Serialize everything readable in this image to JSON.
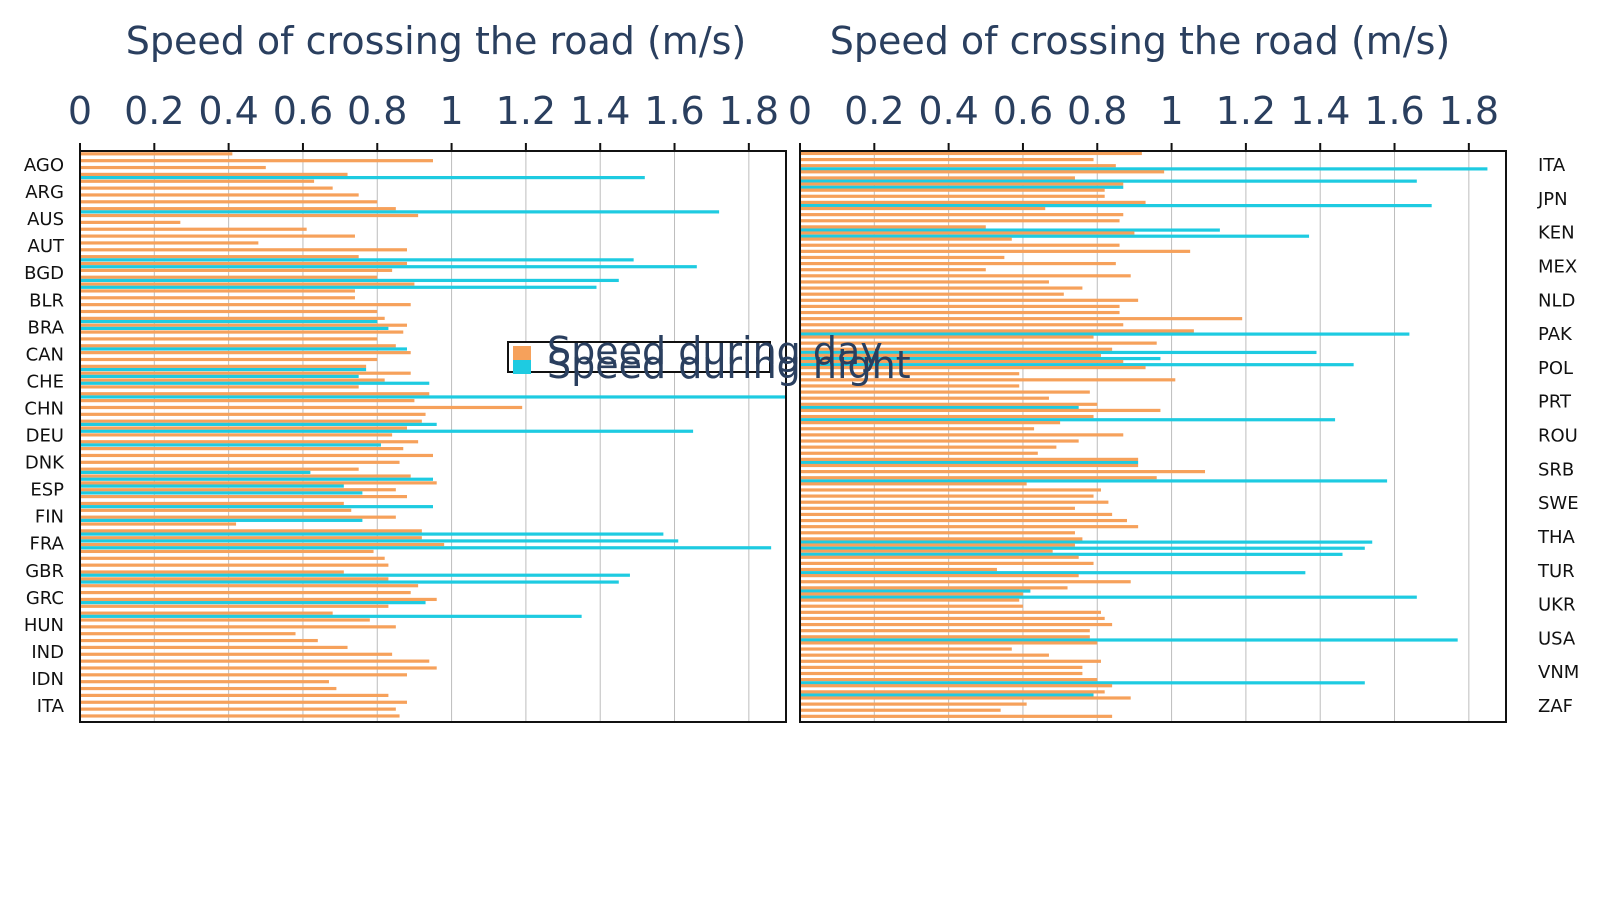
{
  "colors": {
    "day": "#f6a15b",
    "night": "#1ecbe1",
    "grid": "#bdbdbd",
    "frame": "#111111",
    "text": "#2a3f5f"
  },
  "chart_data": [
    {
      "type": "bar",
      "orientation": "horizontal",
      "xlabel": "Speed of crossing the road (m/s)",
      "xlim": [
        0,
        1.9
      ],
      "xticks": [
        "0",
        "0.2",
        "0.4",
        "0.6",
        "0.8",
        "1",
        "1.2",
        "1.4",
        "1.6",
        "1.8"
      ],
      "grid": true,
      "category_labels": [
        "AGO",
        "ARG",
        "AUS",
        "AUT",
        "BGD",
        "BLR",
        "BRA",
        "CAN",
        "CHE",
        "CHN",
        "DEU",
        "DNK",
        "ESP",
        "FIN",
        "FRA",
        "GBR",
        "GRC",
        "HUN",
        "IND",
        "IDN",
        "ITA"
      ],
      "series": [
        {
          "name": "Speed during day",
          "values": [
            0.41,
            0.95,
            0.5,
            0.72,
            0.63,
            0.68,
            0.75,
            0.8,
            0.85,
            0.91,
            0.27,
            0.61,
            0.74,
            0.48,
            0.88,
            0.75,
            0.88,
            0.84,
            0.8,
            0.9,
            0.74,
            0.74,
            0.89,
            0.8,
            0.82,
            0.88,
            0.87,
            0.8,
            0.85,
            0.89,
            0.8,
            0.77,
            0.89,
            0.82,
            0.75,
            0.94,
            0.9,
            1.19,
            0.93,
            0.92,
            0.88,
            0.84,
            0.91,
            0.87,
            0.95,
            0.86,
            0.75,
            0.89,
            0.96,
            0.85,
            0.88,
            0.71,
            0.73,
            0.85,
            0.42,
            0.92,
            0.92,
            0.98,
            0.79,
            0.82,
            0.83,
            0.71,
            0.83,
            0.91,
            0.89,
            0.96,
            0.83,
            0.68,
            0.78,
            0.85,
            0.58,
            0.64,
            0.72,
            0.84,
            0.94,
            0.96,
            0.88,
            0.67,
            0.69,
            0.83,
            0.88,
            0.85,
            0.86
          ]
        },
        {
          "name": "Speed during night",
          "values": [
            null,
            null,
            null,
            1.52,
            null,
            null,
            null,
            null,
            1.72,
            null,
            null,
            null,
            null,
            null,
            null,
            1.49,
            1.66,
            null,
            1.45,
            1.39,
            null,
            null,
            null,
            null,
            0.8,
            0.83,
            null,
            null,
            0.88,
            null,
            null,
            0.77,
            0.75,
            0.94,
            null,
            1.9,
            null,
            null,
            null,
            0.96,
            1.65,
            null,
            0.81,
            null,
            null,
            null,
            0.62,
            0.95,
            0.71,
            0.76,
            null,
            0.95,
            null,
            0.76,
            null,
            1.57,
            1.61,
            1.86,
            null,
            null,
            null,
            1.48,
            1.45,
            null,
            null,
            0.93,
            null,
            1.35,
            null,
            null,
            null,
            null,
            null,
            null,
            null,
            null,
            null,
            null,
            null,
            null,
            null,
            null,
            null
          ]
        }
      ]
    },
    {
      "type": "bar",
      "orientation": "horizontal",
      "xlabel": "Speed of crossing the road (m/s)",
      "xlim": [
        0,
        1.9
      ],
      "xticks": [
        "0",
        "0.2",
        "0.4",
        "0.6",
        "0.8",
        "1",
        "1.2",
        "1.4",
        "1.6",
        "1.8"
      ],
      "grid": true,
      "category_labels": [
        "ITA",
        "JPN",
        "KEN",
        "MEX",
        "NLD",
        "PAK",
        "POL",
        "PRT",
        "ROU",
        "SRB",
        "SWE",
        "THA",
        "TUR",
        "UKR",
        "USA",
        "VNM",
        "ZAF"
      ],
      "series": [
        {
          "name": "Speed during day",
          "values": [
            0.92,
            0.79,
            0.85,
            0.98,
            0.74,
            0.87,
            0.82,
            0.82,
            0.93,
            0.66,
            0.87,
            0.86,
            0.5,
            0.9,
            0.57,
            0.86,
            1.05,
            0.55,
            0.85,
            0.5,
            0.89,
            0.67,
            0.76,
            0.71,
            0.91,
            0.86,
            0.86,
            1.19,
            0.87,
            1.06,
            0.79,
            0.96,
            0.84,
            0.81,
            0.87,
            0.93,
            0.59,
            1.01,
            0.59,
            0.78,
            0.67,
            0.8,
            0.97,
            0.79,
            0.7,
            0.63,
            0.87,
            0.75,
            0.69,
            0.64,
            0.91,
            0.91,
            1.09,
            0.96,
            0.61,
            0.81,
            0.79,
            0.83,
            0.74,
            0.84,
            0.88,
            0.91,
            0.74,
            0.76,
            0.74,
            0.68,
            0.75,
            0.79,
            0.53,
            0.75,
            0.89,
            0.72,
            0.6,
            0.59,
            0.6,
            0.81,
            0.82,
            0.84,
            0.78,
            0.78,
            0.8,
            0.57,
            0.67,
            0.81,
            0.76,
            0.76,
            0.8,
            0.84,
            0.82,
            0.89,
            0.61,
            0.54,
            0.84
          ]
        },
        {
          "name": "Speed during night",
          "values": [
            null,
            null,
            1.85,
            null,
            1.66,
            0.87,
            null,
            null,
            1.7,
            null,
            null,
            null,
            1.13,
            1.37,
            null,
            null,
            null,
            null,
            null,
            null,
            null,
            null,
            null,
            null,
            null,
            null,
            null,
            null,
            null,
            1.64,
            null,
            null,
            1.39,
            0.97,
            1.49,
            null,
            null,
            null,
            null,
            null,
            null,
            0.75,
            null,
            1.44,
            null,
            null,
            null,
            null,
            null,
            null,
            0.91,
            null,
            null,
            1.58,
            null,
            null,
            null,
            null,
            null,
            null,
            null,
            null,
            null,
            1.54,
            1.52,
            1.46,
            null,
            null,
            1.36,
            null,
            null,
            0.62,
            1.66,
            null,
            null,
            null,
            null,
            null,
            null,
            1.77,
            null,
            null,
            null,
            null,
            null,
            null,
            1.52,
            null,
            0.79,
            null,
            null,
            null,
            null
          ]
        }
      ]
    }
  ],
  "legend": {
    "items": [
      {
        "label": "Speed during day",
        "color": "#f6a15b"
      },
      {
        "label": "Speed during night",
        "color": "#1ecbe1"
      }
    ]
  }
}
